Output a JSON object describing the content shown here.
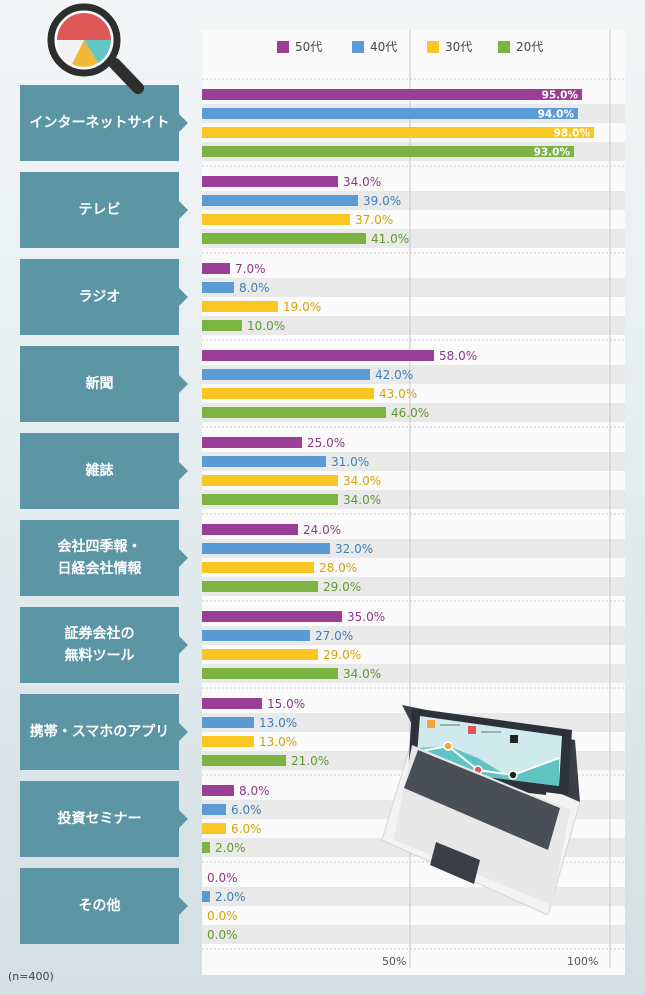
{
  "note": "(n=400)",
  "chart_data": {
    "type": "bar",
    "orientation": "horizontal",
    "categories": [
      "インターネットサイト",
      "テレビ",
      "ラジオ",
      "新聞",
      "雑誌",
      "会社四季報・\n日経会社情報",
      "証券会社の\n無料ツール",
      "携帯・スマホのアプリ",
      "投資セミナー",
      "その他"
    ],
    "series": [
      {
        "name": "50代",
        "color": "#9b3f96",
        "label_color": "#8b3a8a",
        "values": [
          95.0,
          34.0,
          7.0,
          58.0,
          25.0,
          24.0,
          35.0,
          15.0,
          8.0,
          0.0
        ]
      },
      {
        "name": "40代",
        "color": "#5a9bd5",
        "label_color": "#3d7fbd",
        "values": [
          94.0,
          39.0,
          8.0,
          42.0,
          31.0,
          32.0,
          27.0,
          13.0,
          6.0,
          2.0
        ]
      },
      {
        "name": "30代",
        "color": "#f9c623",
        "label_color": "#d9a400",
        "values": [
          98.0,
          37.0,
          19.0,
          43.0,
          34.0,
          28.0,
          29.0,
          13.0,
          6.0,
          0.0
        ]
      },
      {
        "name": "20代",
        "color": "#7cb342",
        "label_color": "#5f9a2d",
        "values": [
          93.0,
          41.0,
          10.0,
          46.0,
          34.0,
          29.0,
          34.0,
          21.0,
          2.0,
          0.0
        ]
      }
    ],
    "xlim": [
      0,
      100
    ],
    "x_ticks": [
      "50%",
      "100%"
    ],
    "value_format": "0.0%",
    "legend_position": "top"
  }
}
